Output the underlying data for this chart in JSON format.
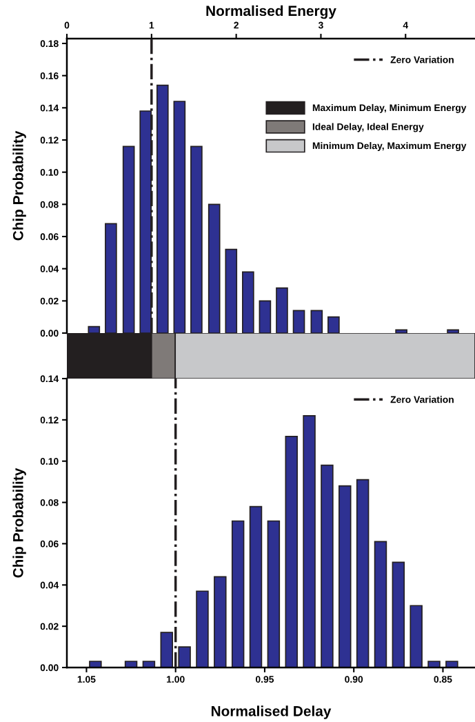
{
  "chart_data": [
    {
      "type": "bar",
      "xlabel": "Normalised Energy",
      "ylabel": "Chip Probability",
      "x": [
        0.32,
        0.52,
        0.73,
        0.93,
        1.13,
        1.33,
        1.53,
        1.74,
        1.94,
        2.14,
        2.34,
        2.54,
        2.74,
        2.95,
        3.15,
        3.95,
        4.56
      ],
      "series": [
        {
          "color": "#2e3192",
          "values": [
            0.004,
            0.068,
            0.116,
            0.138,
            0.154,
            0.144,
            0.116,
            0.08,
            0.052,
            0.038,
            0.02,
            0.028,
            0.014,
            0.014,
            0.01,
            0.002,
            0.002
          ]
        }
      ],
      "xlim": [
        0,
        4.82
      ],
      "xticks": [
        0,
        1,
        2,
        3,
        4
      ],
      "ylim": [
        0,
        0.183
      ],
      "yticks": [
        {
          "value": 0,
          "label": "0.00"
        },
        {
          "value": 0.02,
          "label": "0.02"
        },
        {
          "value": 0.04,
          "label": "0.04"
        },
        {
          "value": 0.06,
          "label": "0.06"
        },
        {
          "value": 0.08,
          "label": "0.08"
        },
        {
          "value": 0.1,
          "label": "0.10"
        },
        {
          "value": 0.12,
          "label": "0.12"
        },
        {
          "value": 0.14,
          "label": "0.14"
        },
        {
          "value": 0.16,
          "label": "0.16"
        },
        {
          "value": 0.18,
          "label": "0.18"
        }
      ],
      "ref_lines": [
        {
          "axis": "x",
          "value": 1,
          "label": "Zero Variation",
          "color": "#231f20",
          "line_style": "dashdot"
        }
      ],
      "legend": "top right",
      "grid": false
    },
    {
      "type": "bar",
      "orientation": "horizontal",
      "stacked": true,
      "categories": [
        null
      ],
      "xlim": [
        0,
        4.82
      ],
      "tick_labels": false,
      "series": [
        {
          "name": "Maximum Delay, Minimum Energy",
          "color": "#231f20",
          "values": [
            1.0
          ]
        },
        {
          "name": "Ideal Delay, Ideal Energy",
          "color": "#7f7a78",
          "values": [
            0.28
          ]
        },
        {
          "name": "Minimum Delay, Maximum Energy",
          "color": "#c7c8ca",
          "values": [
            3.54
          ]
        }
      ],
      "legend": "top right"
    },
    {
      "type": "bar",
      "xlabel": "Normalised Delay",
      "ylabel": "Chip Probability",
      "x": [
        1.045,
        1.025,
        1.015,
        1.005,
        0.995,
        0.985,
        0.975,
        0.965,
        0.955,
        0.945,
        0.935,
        0.925,
        0.915,
        0.905,
        0.895,
        0.885,
        0.875,
        0.865,
        0.855,
        0.845
      ],
      "series": [
        {
          "color": "#2e3192",
          "values": [
            0.003,
            0.003,
            0.003,
            0.017,
            0.01,
            0.037,
            0.044,
            0.071,
            0.078,
            0.071,
            0.112,
            0.122,
            0.098,
            0.088,
            0.091,
            0.061,
            0.051,
            0.03,
            0.003,
            0.003
          ]
        }
      ],
      "xlim": [
        1.061,
        0.832
      ],
      "xticks": [
        {
          "value": 1.05,
          "label": "1.05"
        },
        {
          "value": 1.0,
          "label": "1.00"
        },
        {
          "value": 0.95,
          "label": "0.95"
        },
        {
          "value": 0.9,
          "label": "0.90"
        },
        {
          "value": 0.85,
          "label": "0.85"
        }
      ],
      "ylim": [
        0,
        0.14
      ],
      "yticks": [
        {
          "value": 0,
          "label": "0.00"
        },
        {
          "value": 0.02,
          "label": "0.02"
        },
        {
          "value": 0.04,
          "label": "0.04"
        },
        {
          "value": 0.06,
          "label": "0.06"
        },
        {
          "value": 0.08,
          "label": "0.08"
        },
        {
          "value": 0.1,
          "label": "0.10"
        },
        {
          "value": 0.12,
          "label": "0.12"
        },
        {
          "value": 0.14,
          "label": "0.14"
        }
      ],
      "ref_lines": [
        {
          "axis": "x",
          "value": 1.0,
          "label": "Zero Variation",
          "color": "#231f20",
          "line_style": "dashdot"
        }
      ],
      "legend": "top right",
      "grid": false
    }
  ]
}
